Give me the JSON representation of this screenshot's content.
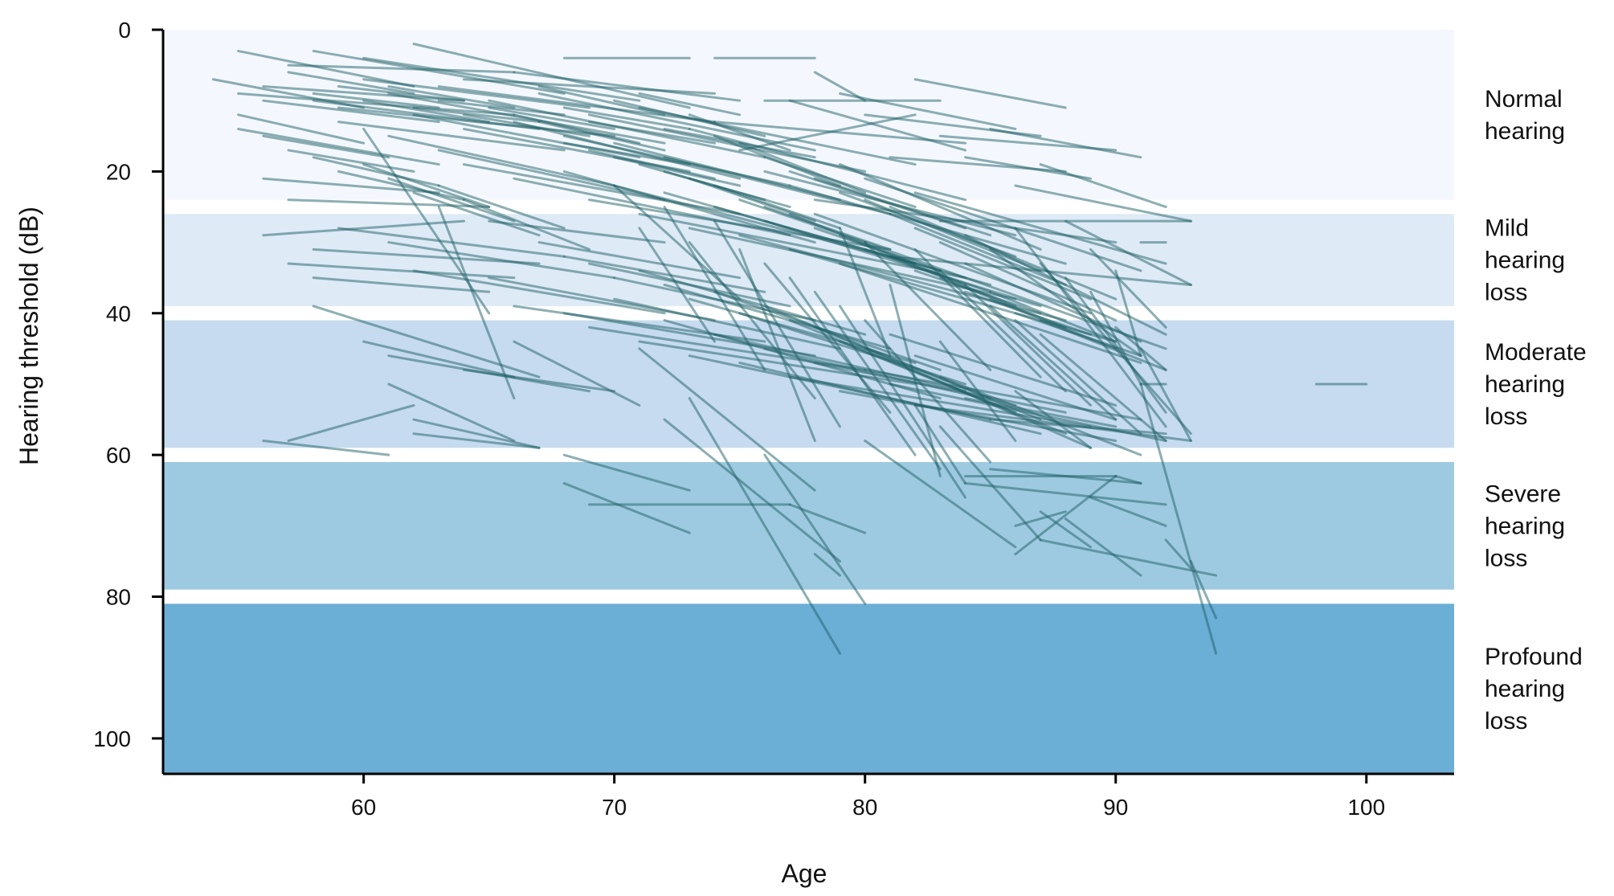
{
  "chart_data": {
    "type": "line",
    "title": "",
    "xlabel": "Age",
    "ylabel": "Hearing threshold (dB)",
    "xlim": [
      52,
      103.5
    ],
    "ylim": [
      0,
      105
    ],
    "y_inverted": true,
    "x_ticks": [
      "60",
      "70",
      "80",
      "90",
      "100"
    ],
    "y_ticks": [
      "0",
      "20",
      "40",
      "60",
      "80",
      "100"
    ],
    "grid": false,
    "series_color": "#1d5f66",
    "bands": [
      {
        "range": [
          0,
          24
        ],
        "label": [
          "Normal",
          "hearing"
        ],
        "color": "#f4f8fe"
      },
      {
        "range": [
          26,
          39
        ],
        "label": [
          "Mild",
          "hearing",
          "loss"
        ],
        "color": "#deeaf6"
      },
      {
        "range": [
          41,
          59
        ],
        "label": [
          "Moderate",
          "hearing",
          "loss"
        ],
        "color": "#c6dbef"
      },
      {
        "range": [
          61,
          79
        ],
        "label": [
          "Severe",
          "hearing",
          "loss"
        ],
        "color": "#9ecae1"
      },
      {
        "range": [
          81,
          105
        ],
        "label": [
          "Profound",
          "hearing",
          "loss"
        ],
        "color": "#6baed6"
      }
    ],
    "segments": [
      [
        55,
        9,
        66,
        12
      ],
      [
        56,
        8,
        64,
        10
      ],
      [
        55,
        14,
        63,
        19
      ],
      [
        57,
        6,
        62,
        9
      ],
      [
        58,
        10,
        67,
        14
      ],
      [
        59,
        11,
        70,
        15
      ],
      [
        60,
        7,
        69,
        11
      ],
      [
        61,
        9,
        72,
        16
      ],
      [
        62,
        12,
        71,
        18
      ],
      [
        63,
        8,
        74,
        13
      ],
      [
        64,
        14,
        73,
        20
      ],
      [
        65,
        10,
        76,
        18
      ],
      [
        66,
        13,
        75,
        21
      ],
      [
        67,
        9,
        78,
        17
      ],
      [
        68,
        15,
        77,
        22
      ],
      [
        69,
        12,
        80,
        20
      ],
      [
        70,
        16,
        79,
        24
      ],
      [
        71,
        11,
        82,
        19
      ],
      [
        72,
        18,
        81,
        26
      ],
      [
        73,
        14,
        84,
        24
      ],
      [
        55,
        3,
        62,
        8
      ],
      [
        57,
        5,
        66,
        6
      ],
      [
        58,
        3,
        68,
        9
      ],
      [
        60,
        4,
        71,
        10
      ],
      [
        62,
        2,
        73,
        11
      ],
      [
        54,
        7,
        60,
        11
      ],
      [
        56,
        10,
        63,
        13
      ],
      [
        59,
        13,
        68,
        17
      ],
      [
        61,
        15,
        70,
        22
      ],
      [
        63,
        17,
        72,
        24
      ],
      [
        64,
        19,
        75,
        26
      ],
      [
        66,
        21,
        77,
        29
      ],
      [
        68,
        20,
        78,
        30
      ],
      [
        69,
        24,
        81,
        31
      ],
      [
        70,
        22,
        82,
        33
      ],
      [
        71,
        26,
        84,
        35
      ],
      [
        72,
        23,
        83,
        34
      ],
      [
        73,
        28,
        86,
        38
      ],
      [
        74,
        25,
        85,
        36
      ],
      [
        75,
        29,
        88,
        41
      ],
      [
        76,
        27,
        87,
        39
      ],
      [
        77,
        31,
        90,
        44
      ],
      [
        78,
        26,
        89,
        40
      ],
      [
        79,
        33,
        91,
        47
      ],
      [
        80,
        30,
        92,
        45
      ],
      [
        81,
        32,
        93,
        36
      ],
      [
        76,
        20,
        86,
        29
      ],
      [
        77,
        22,
        88,
        33
      ],
      [
        78,
        24,
        90,
        30
      ],
      [
        79,
        19,
        87,
        31
      ],
      [
        80,
        21,
        91,
        34
      ],
      [
        81,
        25,
        90,
        38
      ],
      [
        82,
        23,
        92,
        33
      ],
      [
        83,
        27,
        93,
        27
      ],
      [
        84,
        29,
        92,
        43
      ],
      [
        85,
        31,
        91,
        46
      ],
      [
        86,
        28,
        92,
        56
      ],
      [
        87,
        33,
        93,
        57
      ],
      [
        88,
        35,
        92,
        54
      ],
      [
        89,
        37,
        91,
        50
      ],
      [
        56,
        21,
        63,
        23
      ],
      [
        57,
        24,
        65,
        25
      ],
      [
        56,
        29,
        64,
        27
      ],
      [
        58,
        31,
        67,
        33
      ],
      [
        57,
        33,
        66,
        35
      ],
      [
        59,
        28,
        68,
        32
      ],
      [
        58,
        35,
        65,
        37
      ],
      [
        61,
        30,
        70,
        35
      ],
      [
        62,
        34,
        72,
        40
      ],
      [
        65,
        35,
        74,
        41
      ],
      [
        66,
        39,
        76,
        44
      ],
      [
        68,
        40,
        78,
        46
      ],
      [
        69,
        42,
        80,
        48
      ],
      [
        70,
        38,
        79,
        45
      ],
      [
        71,
        44,
        82,
        50
      ],
      [
        72,
        41,
        83,
        52
      ],
      [
        73,
        46,
        85,
        55
      ],
      [
        74,
        43,
        84,
        51
      ],
      [
        75,
        47,
        87,
        57
      ],
      [
        76,
        45,
        86,
        53
      ],
      [
        77,
        49,
        89,
        56
      ],
      [
        78,
        47,
        88,
        54
      ],
      [
        79,
        51,
        90,
        58
      ],
      [
        80,
        48,
        91,
        55
      ],
      [
        81,
        50,
        92,
        58
      ],
      [
        82,
        53,
        93,
        58
      ],
      [
        83,
        49,
        91,
        60
      ],
      [
        84,
        52,
        90,
        56
      ],
      [
        85,
        55,
        92,
        57
      ],
      [
        86,
        51,
        89,
        59
      ],
      [
        58,
        39,
        67,
        49
      ],
      [
        60,
        44,
        66,
        49
      ],
      [
        61,
        46,
        69,
        51
      ],
      [
        64,
        48,
        70,
        51
      ],
      [
        66,
        44,
        71,
        53
      ],
      [
        62,
        57,
        67,
        59
      ],
      [
        56,
        58,
        61,
        60
      ],
      [
        57,
        58,
        62,
        53
      ],
      [
        61,
        50,
        66,
        58
      ],
      [
        62,
        55,
        67,
        59
      ],
      [
        68,
        60,
        73,
        65
      ],
      [
        68,
        64,
        73,
        71
      ],
      [
        69,
        67,
        77,
        67
      ],
      [
        77,
        67,
        80,
        71
      ],
      [
        71,
        45,
        78,
        65
      ],
      [
        72,
        55,
        79,
        75
      ],
      [
        73,
        52,
        79,
        88
      ],
      [
        76,
        60,
        80,
        81
      ],
      [
        78,
        74,
        79,
        77
      ],
      [
        80,
        58,
        86,
        73
      ],
      [
        82,
        53,
        84,
        64
      ],
      [
        83,
        56,
        87,
        72
      ],
      [
        84,
        64,
        92,
        67
      ],
      [
        85,
        62,
        91,
        64
      ],
      [
        86,
        70,
        88,
        68
      ],
      [
        87,
        72,
        94,
        77
      ],
      [
        88,
        69,
        91,
        77
      ],
      [
        89,
        66,
        92,
        70
      ],
      [
        91,
        50,
        94,
        88
      ],
      [
        93,
        75,
        94,
        83
      ],
      [
        84,
        63,
        90,
        63
      ],
      [
        86,
        74,
        90,
        63
      ],
      [
        87,
        68,
        89,
        73
      ],
      [
        90,
        63,
        91,
        64
      ],
      [
        92,
        72,
        93,
        76
      ],
      [
        98,
        50,
        100,
        50
      ],
      [
        91,
        30,
        92,
        30
      ],
      [
        91,
        50,
        92,
        50
      ],
      [
        90,
        42,
        92,
        48
      ],
      [
        91,
        45,
        93,
        58
      ],
      [
        74,
        4,
        78,
        4
      ],
      [
        68,
        4,
        73,
        4
      ],
      [
        74,
        13,
        84,
        16
      ],
      [
        75,
        17,
        82,
        12
      ],
      [
        76,
        10,
        83,
        10
      ],
      [
        79,
        9,
        86,
        14
      ],
      [
        81,
        18,
        88,
        20
      ],
      [
        83,
        15,
        90,
        17
      ],
      [
        85,
        14,
        91,
        18
      ],
      [
        86,
        22,
        93,
        27
      ],
      [
        78,
        6,
        80,
        10
      ],
      [
        77,
        10,
        84,
        17
      ],
      [
        82,
        7,
        88,
        11
      ],
      [
        80,
        12,
        87,
        15
      ],
      [
        84,
        18,
        89,
        21
      ],
      [
        87,
        19,
        92,
        25
      ],
      [
        88,
        27,
        93,
        36
      ],
      [
        89,
        31,
        92,
        42
      ],
      [
        90,
        34,
        91,
        46
      ],
      [
        85,
        37,
        90,
        44
      ],
      [
        64,
        7,
        74,
        9
      ],
      [
        66,
        6,
        75,
        10
      ],
      [
        67,
        8,
        72,
        12
      ],
      [
        68,
        11,
        73,
        14
      ],
      [
        69,
        13,
        74,
        16
      ],
      [
        70,
        10,
        76,
        15
      ],
      [
        71,
        9,
        75,
        12
      ],
      [
        72,
        14,
        78,
        18
      ],
      [
        73,
        12,
        77,
        17
      ],
      [
        74,
        15,
        79,
        22
      ],
      [
        75,
        16,
        80,
        23
      ],
      [
        76,
        18,
        82,
        25
      ],
      [
        77,
        20,
        84,
        28
      ],
      [
        78,
        21,
        85,
        29
      ],
      [
        79,
        23,
        86,
        32
      ],
      [
        80,
        24,
        87,
        34
      ],
      [
        81,
        26,
        88,
        36
      ],
      [
        82,
        28,
        89,
        38
      ],
      [
        83,
        30,
        90,
        41
      ],
      [
        84,
        33,
        91,
        44
      ],
      [
        60,
        14,
        65,
        40
      ],
      [
        63,
        25,
        66,
        52
      ],
      [
        65,
        27,
        72,
        30
      ],
      [
        67,
        30,
        75,
        35
      ],
      [
        68,
        32,
        76,
        37
      ],
      [
        69,
        33,
        77,
        39
      ],
      [
        70,
        35,
        78,
        41
      ],
      [
        71,
        34,
        80,
        43
      ],
      [
        72,
        36,
        81,
        45
      ],
      [
        73,
        38,
        82,
        47
      ],
      [
        74,
        37,
        83,
        48
      ],
      [
        75,
        40,
        84,
        50
      ],
      [
        76,
        39,
        85,
        52
      ],
      [
        77,
        41,
        86,
        54
      ],
      [
        78,
        42,
        87,
        55
      ],
      [
        79,
        44,
        88,
        57
      ],
      [
        80,
        45,
        89,
        59
      ],
      [
        81,
        43,
        90,
        53
      ],
      [
        82,
        46,
        90,
        55
      ],
      [
        83,
        44,
        86,
        58
      ],
      [
        70,
        22,
        75,
        38
      ],
      [
        71,
        28,
        74,
        44
      ],
      [
        72,
        25,
        76,
        48
      ],
      [
        73,
        30,
        78,
        52
      ],
      [
        74,
        27,
        79,
        56
      ],
      [
        75,
        31,
        78,
        58
      ],
      [
        76,
        33,
        81,
        54
      ],
      [
        77,
        35,
        82,
        60
      ],
      [
        78,
        37,
        83,
        62
      ],
      [
        79,
        39,
        84,
        66
      ],
      [
        80,
        41,
        85,
        61
      ],
      [
        81,
        36,
        83,
        63
      ],
      [
        79,
        28,
        81,
        46
      ],
      [
        80,
        30,
        85,
        48
      ],
      [
        82,
        31,
        87,
        49
      ],
      [
        83,
        34,
        88,
        51
      ],
      [
        84,
        36,
        89,
        53
      ],
      [
        85,
        39,
        90,
        55
      ],
      [
        86,
        41,
        91,
        57
      ],
      [
        87,
        43,
        92,
        58
      ],
      [
        55,
        12,
        60,
        16
      ],
      [
        56,
        15,
        61,
        18
      ],
      [
        57,
        17,
        62,
        20
      ],
      [
        58,
        18,
        63,
        22
      ],
      [
        59,
        20,
        64,
        24
      ],
      [
        60,
        19,
        65,
        25
      ],
      [
        61,
        21,
        66,
        27
      ],
      [
        62,
        23,
        67,
        29
      ],
      [
        63,
        22,
        68,
        28
      ],
      [
        64,
        24,
        69,
        31
      ],
      [
        58,
        9,
        63,
        11
      ],
      [
        59,
        8,
        64,
        10
      ],
      [
        60,
        10,
        65,
        13
      ],
      [
        61,
        8,
        66,
        11
      ],
      [
        62,
        11,
        67,
        13
      ],
      [
        63,
        10,
        68,
        12
      ],
      [
        64,
        12,
        69,
        15
      ],
      [
        65,
        11,
        70,
        14
      ],
      [
        66,
        12,
        71,
        16
      ],
      [
        67,
        13,
        72,
        17
      ],
      [
        68,
        16,
        73,
        19
      ],
      [
        69,
        17,
        74,
        21
      ],
      [
        70,
        18,
        75,
        22
      ],
      [
        71,
        19,
        76,
        24
      ],
      [
        72,
        20,
        77,
        25
      ],
      [
        73,
        21,
        78,
        27
      ],
      [
        74,
        22,
        79,
        28
      ],
      [
        75,
        24,
        80,
        30
      ],
      [
        76,
        25,
        81,
        31
      ],
      [
        77,
        26,
        82,
        33
      ],
      [
        78,
        28,
        83,
        34
      ],
      [
        79,
        29,
        84,
        36
      ],
      [
        80,
        31,
        85,
        37
      ],
      [
        81,
        32,
        86,
        39
      ],
      [
        82,
        34,
        87,
        40
      ],
      [
        83,
        35,
        88,
        42
      ],
      [
        84,
        37,
        89,
        43
      ],
      [
        85,
        38,
        90,
        45
      ],
      [
        86,
        40,
        91,
        46
      ],
      [
        87,
        41,
        92,
        48
      ]
    ]
  }
}
